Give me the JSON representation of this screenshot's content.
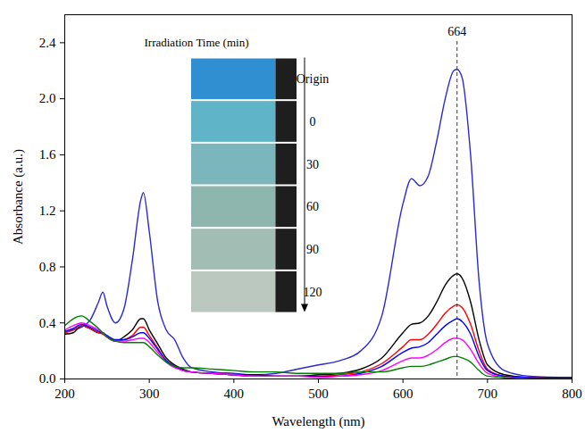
{
  "chart_data": {
    "type": "line",
    "x_label": "Wavelength (nm)",
    "y_label": "Absorbance (a.u.)",
    "xlim": [
      200,
      800
    ],
    "xticks": [
      200,
      300,
      400,
      500,
      600,
      700,
      800
    ],
    "ylim": [
      0,
      2.6
    ],
    "yticks": [
      {
        "value": 0,
        "label": "0.0"
      },
      {
        "value": 0.4,
        "label": "0.4"
      },
      {
        "value": 0.8,
        "label": "0.8"
      },
      {
        "value": 1.2,
        "label": "1.2"
      },
      {
        "value": 1.6,
        "label": "1.6"
      },
      {
        "value": 2.0,
        "label": "2.0"
      },
      {
        "value": 2.4,
        "label": "2.4"
      }
    ],
    "grid": false,
    "annotations": [
      {
        "text": "664",
        "x": 664,
        "line_style": "dashed"
      }
    ],
    "inset_title": "Irradiation Time (min)",
    "x": [
      200,
      210,
      220,
      230,
      240,
      245,
      250,
      260,
      270,
      280,
      290,
      293,
      300,
      310,
      320,
      330,
      340,
      350,
      375,
      400,
      425,
      450,
      475,
      500,
      525,
      550,
      575,
      600,
      610,
      620,
      630,
      640,
      650,
      660,
      664,
      670,
      680,
      690,
      700,
      720,
      750,
      800
    ],
    "series": [
      {
        "name": "Origin",
        "color": "#2a2ad0",
        "values": [
          0.33,
          0.35,
          0.37,
          0.42,
          0.55,
          0.62,
          0.52,
          0.4,
          0.5,
          0.85,
          1.28,
          1.33,
          1.05,
          0.55,
          0.35,
          0.28,
          0.15,
          0.08,
          0.05,
          0.04,
          0.03,
          0.04,
          0.07,
          0.1,
          0.13,
          0.2,
          0.45,
          1.25,
          1.43,
          1.38,
          1.45,
          1.7,
          2.0,
          2.2,
          2.21,
          2.15,
          1.6,
          0.7,
          0.25,
          0.06,
          0.02,
          0.01
        ]
      },
      {
        "name": "0",
        "color": "#000000",
        "values": [
          0.32,
          0.33,
          0.38,
          0.36,
          0.33,
          0.33,
          0.3,
          0.27,
          0.3,
          0.35,
          0.43,
          0.43,
          0.35,
          0.25,
          0.15,
          0.1,
          0.07,
          0.05,
          0.04,
          0.03,
          0.03,
          0.02,
          0.02,
          0.03,
          0.04,
          0.07,
          0.15,
          0.33,
          0.39,
          0.4,
          0.45,
          0.55,
          0.67,
          0.74,
          0.75,
          0.72,
          0.55,
          0.28,
          0.1,
          0.03,
          0.01,
          0.01
        ]
      },
      {
        "name": "30",
        "color": "#ff0000",
        "values": [
          0.33,
          0.35,
          0.38,
          0.36,
          0.33,
          0.32,
          0.3,
          0.27,
          0.28,
          0.31,
          0.37,
          0.37,
          0.31,
          0.22,
          0.13,
          0.09,
          0.06,
          0.05,
          0.04,
          0.03,
          0.02,
          0.02,
          0.02,
          0.02,
          0.03,
          0.05,
          0.11,
          0.23,
          0.28,
          0.28,
          0.32,
          0.39,
          0.47,
          0.52,
          0.53,
          0.51,
          0.39,
          0.2,
          0.07,
          0.02,
          0.01,
          0.0
        ]
      },
      {
        "name": "60",
        "color": "#0000ff",
        "values": [
          0.34,
          0.36,
          0.39,
          0.37,
          0.34,
          0.33,
          0.31,
          0.28,
          0.28,
          0.3,
          0.33,
          0.33,
          0.29,
          0.21,
          0.13,
          0.09,
          0.06,
          0.05,
          0.04,
          0.03,
          0.02,
          0.02,
          0.02,
          0.02,
          0.02,
          0.04,
          0.09,
          0.19,
          0.22,
          0.23,
          0.26,
          0.32,
          0.38,
          0.42,
          0.43,
          0.41,
          0.32,
          0.16,
          0.06,
          0.02,
          0.01,
          0.0
        ]
      },
      {
        "name": "90",
        "color": "#ff00ff",
        "values": [
          0.35,
          0.38,
          0.4,
          0.38,
          0.35,
          0.33,
          0.3,
          0.27,
          0.27,
          0.28,
          0.29,
          0.29,
          0.26,
          0.19,
          0.12,
          0.08,
          0.06,
          0.05,
          0.04,
          0.03,
          0.02,
          0.02,
          0.02,
          0.01,
          0.02,
          0.03,
          0.06,
          0.13,
          0.15,
          0.15,
          0.17,
          0.21,
          0.26,
          0.29,
          0.29,
          0.28,
          0.21,
          0.11,
          0.04,
          0.01,
          0.0,
          0.0
        ]
      },
      {
        "name": "120",
        "color": "#008000",
        "values": [
          0.38,
          0.43,
          0.45,
          0.41,
          0.36,
          0.33,
          0.3,
          0.27,
          0.26,
          0.26,
          0.26,
          0.26,
          0.23,
          0.17,
          0.12,
          0.09,
          0.08,
          0.08,
          0.07,
          0.06,
          0.05,
          0.05,
          0.04,
          0.04,
          0.04,
          0.05,
          0.05,
          0.08,
          0.09,
          0.09,
          0.1,
          0.12,
          0.14,
          0.16,
          0.16,
          0.15,
          0.12,
          0.06,
          0.02,
          0.01,
          0.0,
          0.0
        ]
      }
    ]
  }
}
